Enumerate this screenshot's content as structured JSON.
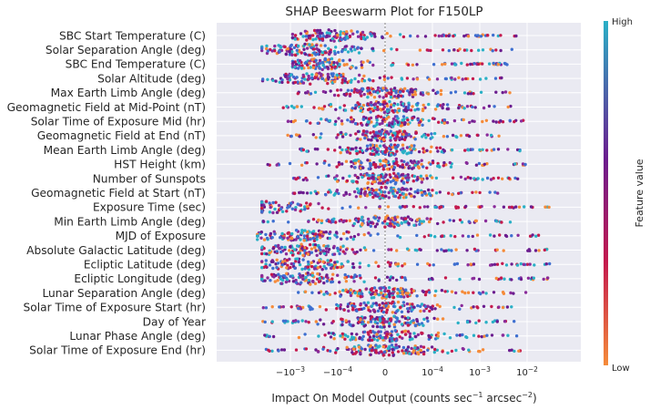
{
  "chart_data": {
    "type": "scatter",
    "title": "SHAP Beeswarm Plot for F150LP",
    "xlabel_main": "Impact On Model Output (counts sec",
    "xlabel_sup1": "−1",
    "xlabel_mid": " arcsec",
    "xlabel_sup2": "−2",
    "xlabel_end": ")",
    "xscale": "symlog",
    "xticks": [
      {
        "value": -0.001,
        "base": "−10",
        "exp": "−3"
      },
      {
        "value": -0.0001,
        "base": "−10",
        "exp": "−4"
      },
      {
        "value": 0,
        "base": "0",
        "exp": ""
      },
      {
        "value": 0.0001,
        "base": "10",
        "exp": "−4"
      },
      {
        "value": 0.001,
        "base": "10",
        "exp": "−3"
      },
      {
        "value": 0.01,
        "base": "10",
        "exp": "−2"
      }
    ],
    "colorbar": {
      "title": "Feature value",
      "high": "High",
      "low": "Low"
    },
    "colors": {
      "high": "#2ab0c6",
      "mid": "#6b1d8f",
      "mid2": "#c41a4e",
      "low": "#f58b3a",
      "background": "#eaeaf2"
    },
    "grid": true,
    "features": [
      {
        "name": "SBC Start Temperature (C)",
        "min": -0.0009,
        "max": 0.006,
        "center": -0.00015
      },
      {
        "name": "Solar Separation Angle (deg)",
        "min": -0.004,
        "max": 0.006,
        "center": -0.0005
      },
      {
        "name": "SBC End Temperature (C)",
        "min": -0.0009,
        "max": 0.004,
        "center": -0.0002
      },
      {
        "name": "Solar Altitude (deg)",
        "min": -0.004,
        "max": 0.003,
        "center": -0.0003
      },
      {
        "name": "Max Earth Limb Angle (deg)",
        "min": -0.0007,
        "max": 0.0045,
        "center": 0.0
      },
      {
        "name": "Geomagnetic Field at Mid-Point (nT)",
        "min": -0.0015,
        "max": 0.0045,
        "center": 0.0
      },
      {
        "name": "Solar Time of Exposure Mid (hr)",
        "min": -0.0015,
        "max": 0.009,
        "center": 0.0
      },
      {
        "name": "Geomagnetic Field at End (nT)",
        "min": -0.0013,
        "max": 0.0035,
        "center": 0.0
      },
      {
        "name": "Mean Earth Limb Angle (deg)",
        "min": -0.0007,
        "max": 0.01,
        "center": 0.0
      },
      {
        "name": "HST Height (km)",
        "min": -0.004,
        "max": 0.01,
        "center": 0.0
      },
      {
        "name": "Number of Sunspots",
        "min": -0.0009,
        "max": 0.008,
        "center": 0.0
      },
      {
        "name": "Geomagnetic Field at Start (nT)",
        "min": -0.001,
        "max": 0.003,
        "center": 0.0
      },
      {
        "name": "Exposure Time (sec)",
        "min": -0.004,
        "max": 0.05,
        "center": -0.003
      },
      {
        "name": "Min Earth Limb Angle (deg)",
        "min": -0.004,
        "max": 0.005,
        "center": 0.0
      },
      {
        "name": "MJD of Exposure",
        "min": -0.005,
        "max": 0.03,
        "center": -0.0005
      },
      {
        "name": "Absolute Galactic Latitude (deg)",
        "min": -0.004,
        "max": 0.03,
        "center": -0.0005
      },
      {
        "name": "Ecliptic Latitude (deg)",
        "min": -0.004,
        "max": 0.03,
        "center": -0.0005
      },
      {
        "name": "Ecliptic Longitude (deg)",
        "min": -0.004,
        "max": 0.03,
        "center": -0.0005
      },
      {
        "name": "Lunar Separation Angle (deg)",
        "min": -0.0009,
        "max": 0.01,
        "center": 0.0
      },
      {
        "name": "Solar Time of Exposure Start (hr)",
        "min": -0.004,
        "max": 0.008,
        "center": 0.0
      },
      {
        "name": "Day of Year",
        "min": -0.004,
        "max": 0.008,
        "center": 0.0
      },
      {
        "name": "Lunar Phase Angle (deg)",
        "min": -0.004,
        "max": 0.009,
        "center": 0.0
      },
      {
        "name": "Solar Time of Exposure End (hr)",
        "min": -0.004,
        "max": 0.008,
        "center": 0.0
      }
    ]
  }
}
